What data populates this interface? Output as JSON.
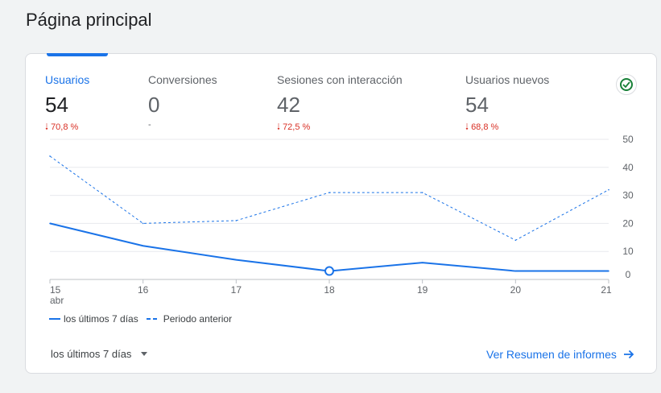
{
  "page": {
    "title": "Página principal"
  },
  "metrics": [
    {
      "label": "Usuarios",
      "value": "54",
      "delta": "70,8 %",
      "trend": "down"
    },
    {
      "label": "Conversiones",
      "value": "0",
      "delta": "-",
      "trend": "none"
    },
    {
      "label": "Sesiones con interacción",
      "value": "42",
      "delta": "72,5 %",
      "trend": "down"
    },
    {
      "label": "Usuarios nuevos",
      "value": "54",
      "delta": "68,8 %",
      "trend": "down"
    }
  ],
  "status_icon": "check-circle-icon",
  "colors": {
    "accent": "#1a73e8",
    "negative": "#d93025",
    "positive": "#188038"
  },
  "chart_data": {
    "type": "line",
    "categories": [
      "15",
      "16",
      "17",
      "18",
      "19",
      "20",
      "21"
    ],
    "x_sublabel": "abr",
    "ylim": [
      0,
      50
    ],
    "yticks": [
      0,
      10,
      20,
      30,
      40,
      50
    ],
    "grid": true,
    "legend_position": "bottom-left",
    "series": [
      {
        "name": "los últimos 7 días",
        "style": "solid",
        "values": [
          20,
          12,
          7,
          3,
          6,
          3,
          3
        ]
      },
      {
        "name": "Periodo anterior",
        "style": "dashed",
        "values": [
          44,
          20,
          21,
          31,
          31,
          14,
          32
        ]
      }
    ],
    "highlight_index": 3
  },
  "legend": {
    "current_label": "los últimos 7 días",
    "previous_label": "Periodo anterior"
  },
  "footer": {
    "range_label": "los últimos 7 días",
    "link_label": "Ver Resumen de informes"
  }
}
